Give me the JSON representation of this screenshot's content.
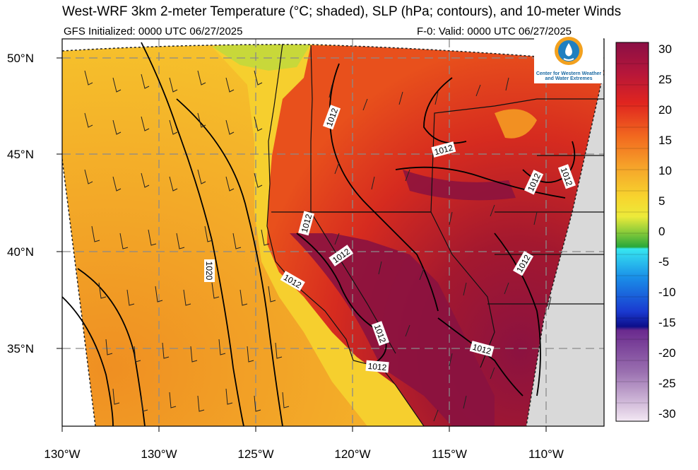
{
  "header": {
    "title": "West-WRF 3km 2-meter Temperature (°C; shaded), SLP (hPa; contours), and 10-meter Winds",
    "init_line": "GFS Initialized: 0000 UTC 06/27/2025",
    "valid_line": "F-0: Valid: 0000 UTC 06/27/2025"
  },
  "logo": {
    "organization": "Center for Western Weather and Water Extremes",
    "line1": "Center for Western Weather",
    "line2": "and Water Extremes",
    "icon": "water-drop-logo-icon"
  },
  "map": {
    "latitude_labels": [
      "50°N",
      "45°N",
      "40°N",
      "35°N"
    ],
    "longitude_labels": [
      "130°W",
      "130°W",
      "125°W",
      "120°W",
      "115°W",
      "110°W"
    ],
    "contour_labels": [
      "1012",
      "1012",
      "1012",
      "1012",
      "1012",
      "1012",
      "1012",
      "1012",
      "1012",
      "1012",
      "1020"
    ],
    "colors": {
      "ocean_cool": "#f6c22a",
      "ocean_warm": "#f29a22",
      "land_hot": "#d92a1e",
      "land_extreme": "#8a1240",
      "out_of_domain": "#d9d9d9",
      "grid": "#888888"
    }
  },
  "colorbar": {
    "labels": [
      "30",
      "25",
      "20",
      "15",
      "10",
      "5",
      "0",
      "-5",
      "-10",
      "-15",
      "-20",
      "-25",
      "-30"
    ],
    "units": "°C"
  }
}
